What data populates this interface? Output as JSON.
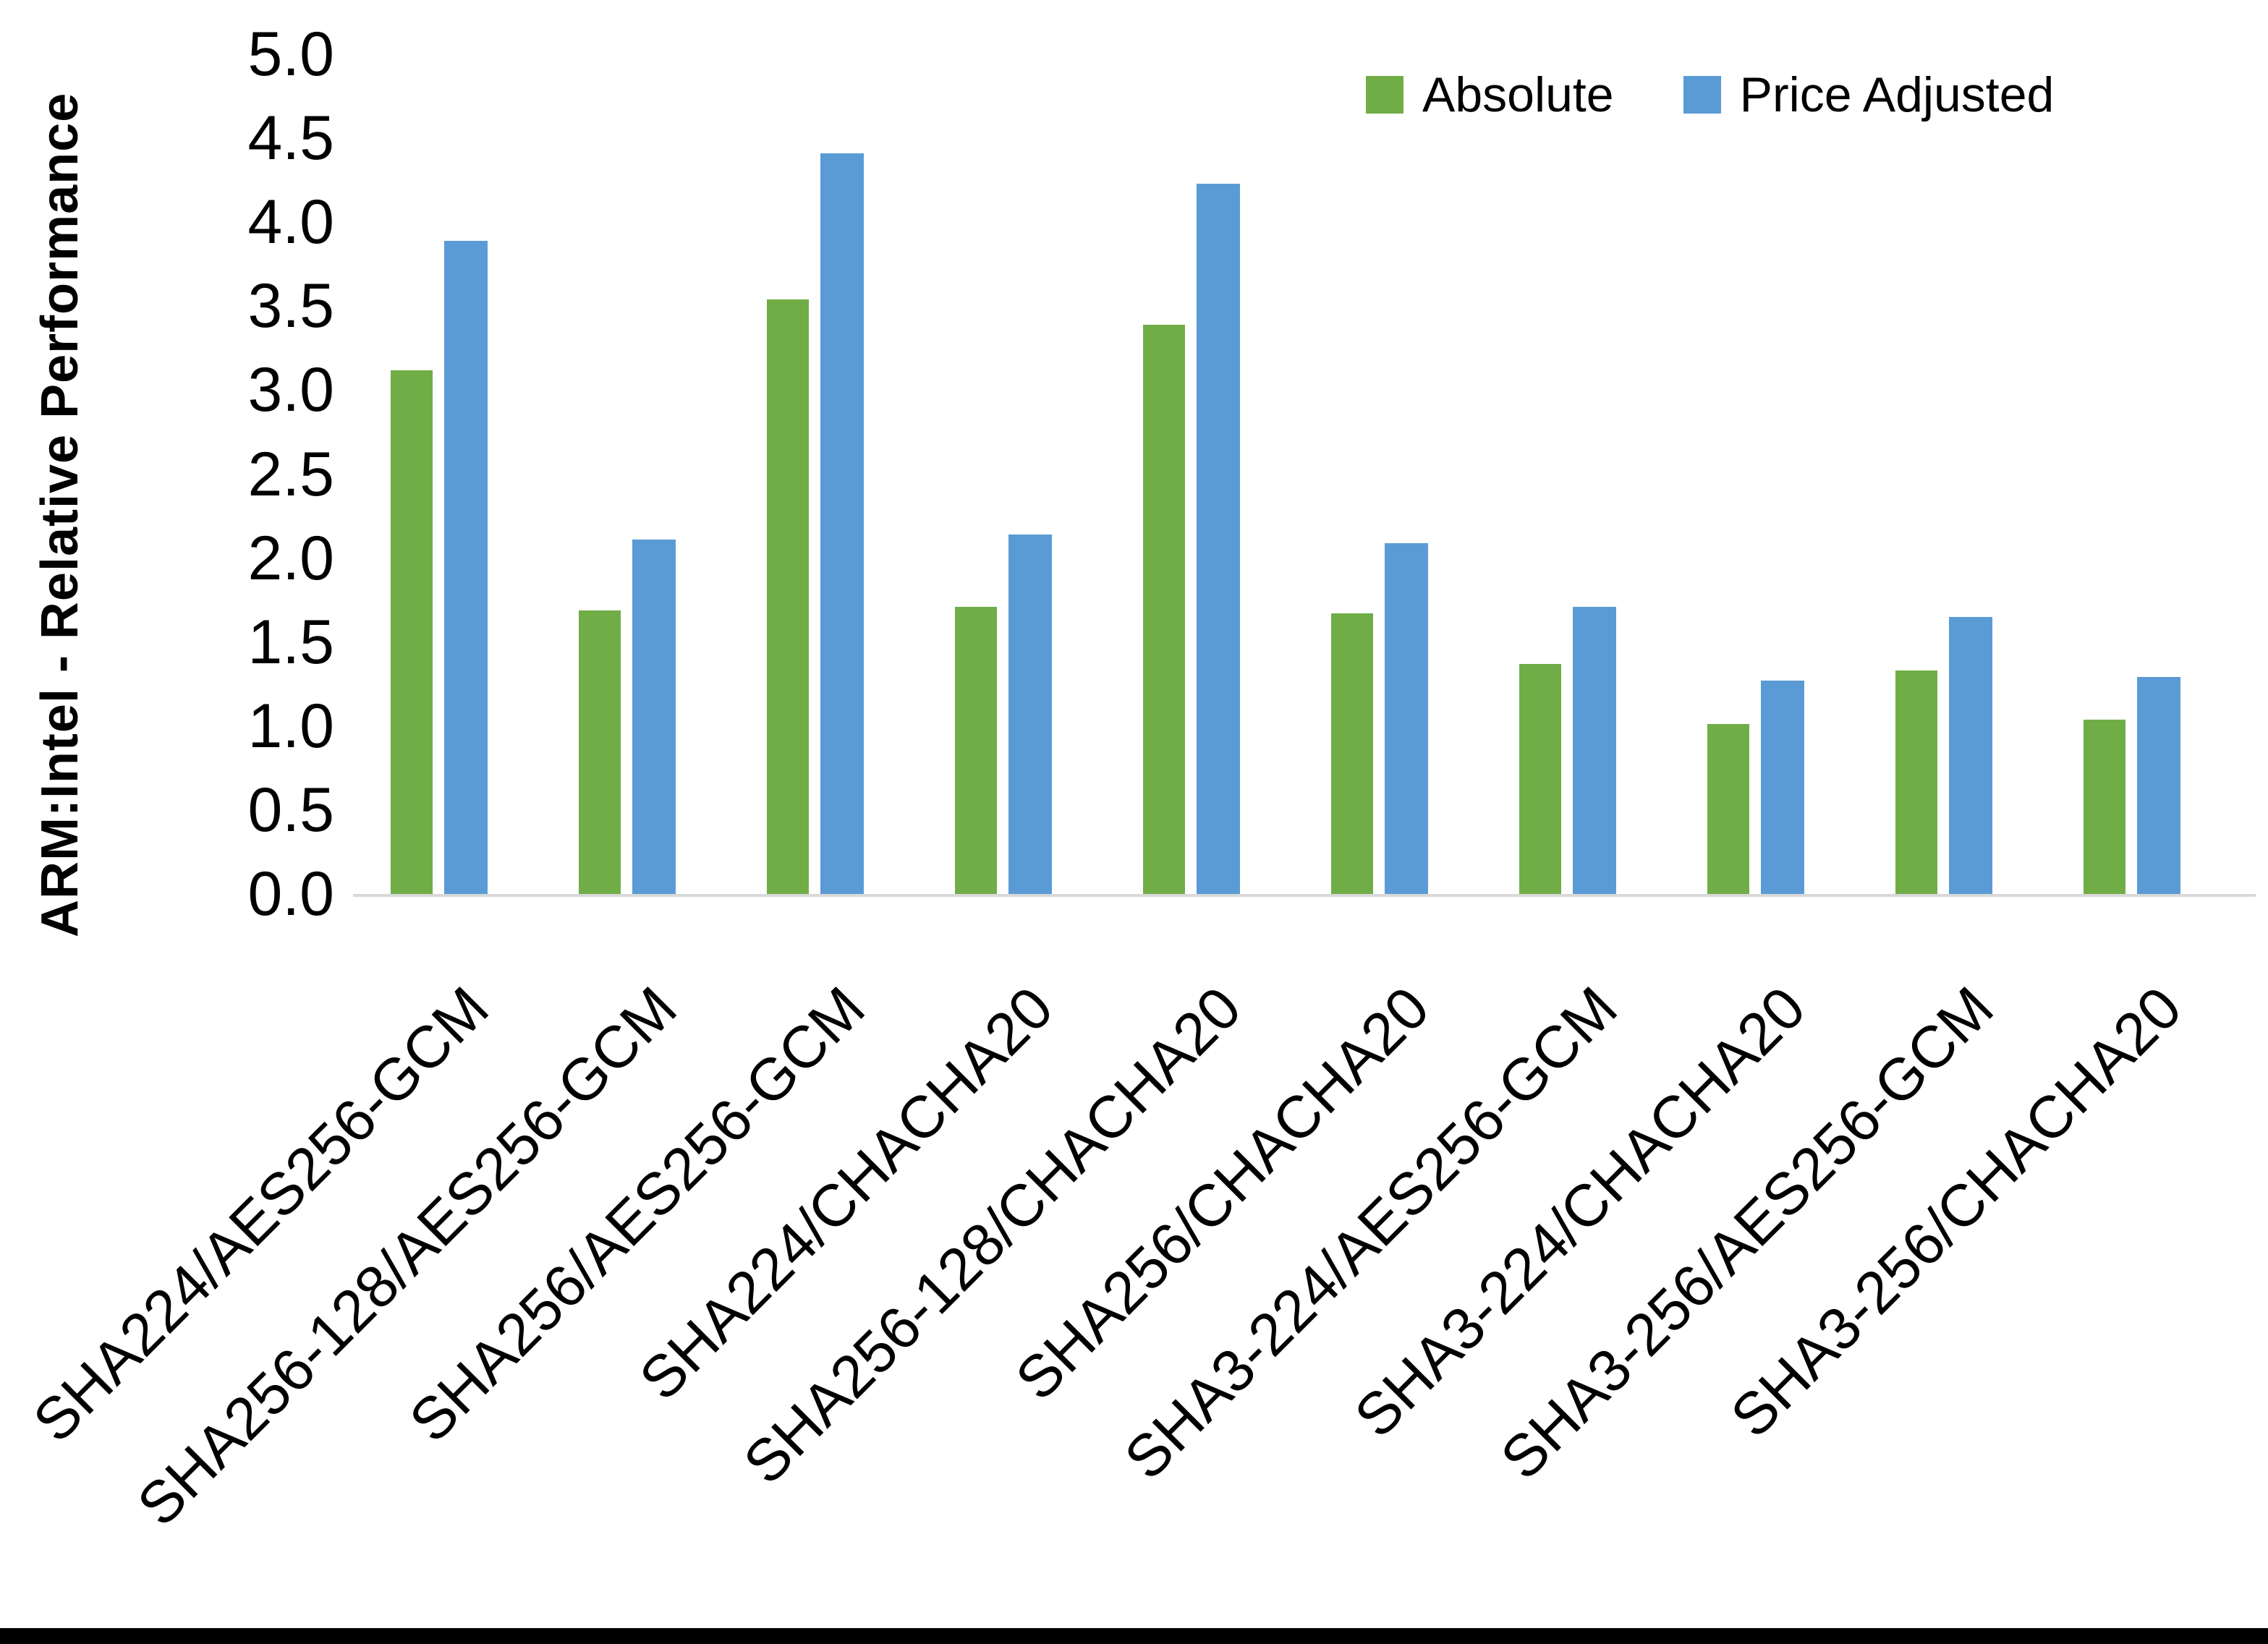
{
  "chart_data": {
    "type": "bar",
    "title": "",
    "xlabel": "",
    "ylabel": "ARM:Intel - Relative Performance",
    "categories": [
      "SHA224/AES256-GCM",
      "SHA256-128/AES256-GCM",
      "SHA256/AES256-GCM",
      "SHA224/CHACHA20",
      "SHA256-128/CHACHA20",
      "SHA256/CHACHA20",
      "SHA3-224/AES256-GCM",
      "SHA3-224/CHACHA20",
      "SHA3-256/AES256-GCM",
      "SHA3-256/CHACHA20"
    ],
    "series": [
      {
        "name": "Absolute",
        "color": "#70AD47",
        "values": [
          3.12,
          1.69,
          3.54,
          1.71,
          3.39,
          1.67,
          1.37,
          1.01,
          1.33,
          1.04
        ]
      },
      {
        "name": "Price Adjusted",
        "color": "#5B9BD5",
        "values": [
          3.89,
          2.11,
          4.41,
          2.14,
          4.23,
          2.09,
          1.71,
          1.27,
          1.65,
          1.29
        ]
      }
    ],
    "ylim": [
      0,
      5
    ],
    "ytick_step": 0.5,
    "ytick_labels": [
      "0.0",
      "0.5",
      "1.0",
      "1.5",
      "2.0",
      "2.5",
      "3.0",
      "3.5",
      "4.0",
      "4.5",
      "5.0"
    ],
    "grid": false,
    "legend_position": "top-right",
    "axis_line_color": "#D9D9D9",
    "text_color": "#000000"
  }
}
